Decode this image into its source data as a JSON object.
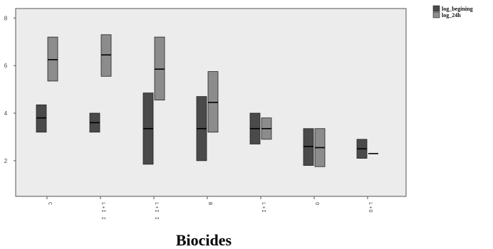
{
  "chart_data": {
    "type": "boxplot",
    "xlabel": "Biocides",
    "ylabel": "",
    "ylim": [
      0.5,
      8.4
    ],
    "yticks": [
      2,
      4,
      6,
      8
    ],
    "grid": false,
    "legend_position": "top-right",
    "categories": [
      "C",
      "L+I I",
      "L+I I",
      "B",
      "L+I",
      "O",
      "L+O"
    ],
    "series": [
      {
        "name": "log_begining",
        "color": "#4a4a4a",
        "boxes": [
          {
            "q1": 3.2,
            "median": 3.8,
            "q3": 4.35
          },
          {
            "q1": 3.2,
            "median": 3.6,
            "q3": 4.0
          },
          {
            "q1": 1.85,
            "median": 3.35,
            "q3": 4.85
          },
          {
            "q1": 2.0,
            "median": 3.35,
            "q3": 4.7
          },
          {
            "q1": 2.7,
            "median": 3.35,
            "q3": 4.0
          },
          {
            "q1": 1.8,
            "median": 2.6,
            "q3": 3.35
          },
          {
            "q1": 2.1,
            "median": 2.5,
            "q3": 2.9
          }
        ]
      },
      {
        "name": "log_24h",
        "color": "#8c8c8c",
        "boxes": [
          {
            "q1": 5.35,
            "median": 6.25,
            "q3": 7.2
          },
          {
            "q1": 5.55,
            "median": 6.45,
            "q3": 7.3
          },
          {
            "q1": 4.55,
            "median": 5.85,
            "q3": 7.2
          },
          {
            "q1": 3.2,
            "median": 4.45,
            "q3": 5.75
          },
          {
            "q1": 2.9,
            "median": 3.35,
            "q3": 3.8
          },
          {
            "q1": 1.75,
            "median": 2.55,
            "q3": 3.35
          },
          {
            "q1": 2.3,
            "median": 2.3,
            "q3": 2.3
          }
        ]
      }
    ]
  }
}
